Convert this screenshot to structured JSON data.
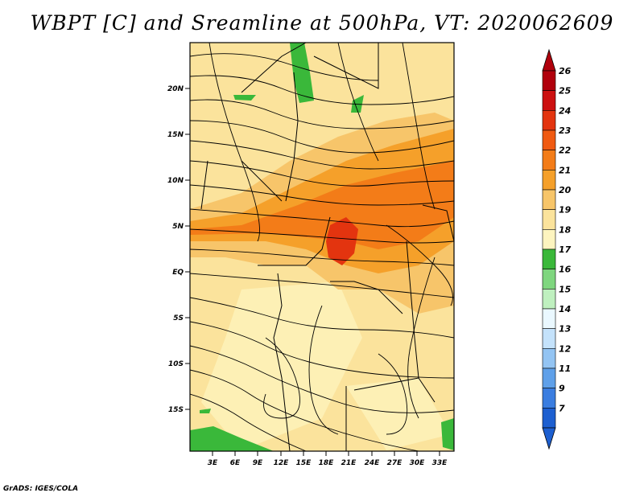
{
  "title": "WBPT [C] and Sreamline at 500hPa, VT: 2020062609",
  "credit": "GrADS: IGES/COLA",
  "map": {
    "lat_labels": [
      "20N",
      "15N",
      "10N",
      "5N",
      "EQ",
      "5S",
      "10S",
      "15S"
    ],
    "lon_labels": [
      "3E",
      "6E",
      "9E",
      "12E",
      "15E",
      "18E",
      "21E",
      "24E",
      "27E",
      "30E",
      "33E"
    ]
  },
  "colorbar": {
    "labels": [
      "26",
      "25",
      "24",
      "23",
      "22",
      "21",
      "20",
      "19",
      "18",
      "17",
      "16",
      "15",
      "14",
      "13",
      "12",
      "11",
      "9",
      "7"
    ],
    "colors": [
      "#b0000c",
      "#cc1010",
      "#e3340f",
      "#f05a12",
      "#f37c18",
      "#f5a02a",
      "#f7c56a",
      "#fbe39c",
      "#fdf4bf",
      "#3ab83a",
      "#7fd67f",
      "#bff0bf",
      "#eaf8ff",
      "#c4e2fb",
      "#93c4f3",
      "#5fa0e9",
      "#3a7de0",
      "#1d5fd0"
    ]
  }
}
